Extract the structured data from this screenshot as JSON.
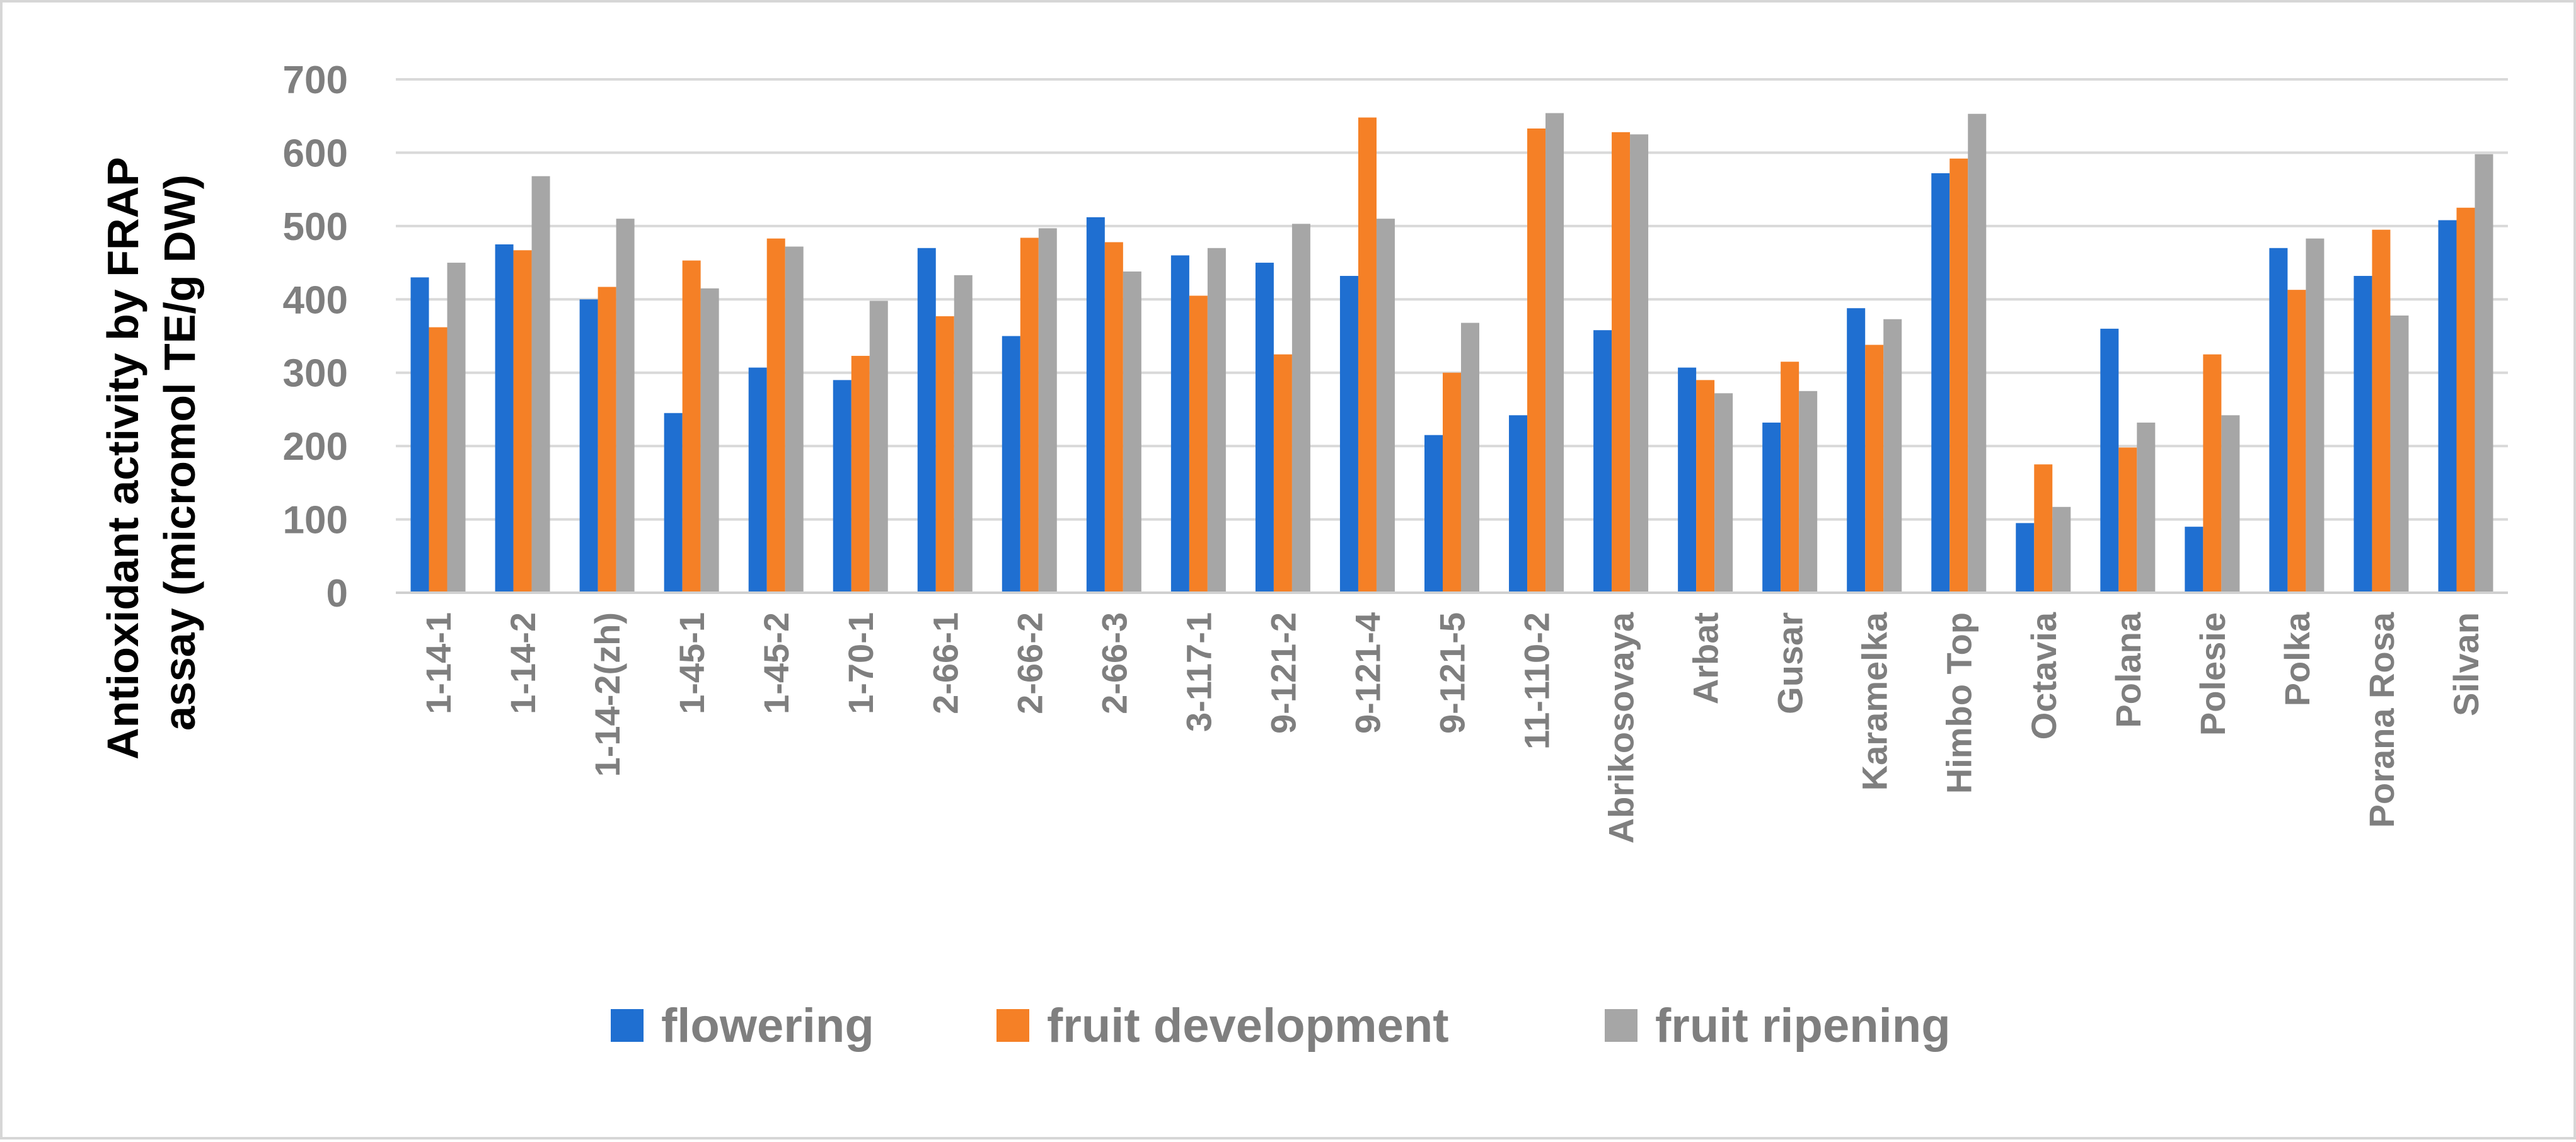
{
  "chart_data": {
    "type": "bar",
    "title": "",
    "xlabel": "",
    "ylabel": "Antioxidant activity by FRAP assay (micromol TE/g DW)",
    "ylabel_lines": [
      "Antioxidant activity by FRAP",
      "assay (micromol TE/g DW)"
    ],
    "ylim": [
      0,
      700
    ],
    "yticks": [
      0,
      100,
      200,
      300,
      400,
      500,
      600,
      700
    ],
    "grid": true,
    "legend_position": "bottom",
    "categories": [
      "1-14-1",
      "1-14-2",
      "1-14-2(zh)",
      "1-45-1",
      "1-45-2",
      "1-70-1",
      "2-66-1",
      "2-66-2",
      "2-66-3",
      "3-117-1",
      "9-121-2",
      "9-121-4",
      "9-121-5",
      "11-110-2",
      "Abrikosovaya",
      "Arbat",
      "Gusar",
      "Karamelka",
      "Himbo Top",
      "Octavia",
      "Polana",
      "Polesie",
      "Polka",
      "Porana Rosa",
      "Silvan"
    ],
    "series": [
      {
        "name": "flowering",
        "color": "#1f6fd1",
        "values": [
          430,
          475,
          400,
          245,
          307,
          290,
          470,
          350,
          512,
          460,
          450,
          432,
          215,
          242,
          358,
          307,
          232,
          388,
          572,
          95,
          360,
          90,
          470,
          432,
          508
        ]
      },
      {
        "name": "fruit development",
        "color": "#f58026",
        "values": [
          362,
          467,
          417,
          453,
          483,
          323,
          377,
          484,
          478,
          405,
          325,
          648,
          300,
          633,
          628,
          290,
          315,
          338,
          592,
          175,
          198,
          325,
          413,
          495,
          525
        ]
      },
      {
        "name": "fruit ripening",
        "color": "#a6a6a6",
        "values": [
          450,
          568,
          510,
          415,
          472,
          398,
          433,
          497,
          438,
          470,
          503,
          510,
          368,
          654,
          625,
          272,
          275,
          373,
          653,
          117,
          232,
          242,
          483,
          378,
          598
        ]
      }
    ]
  }
}
